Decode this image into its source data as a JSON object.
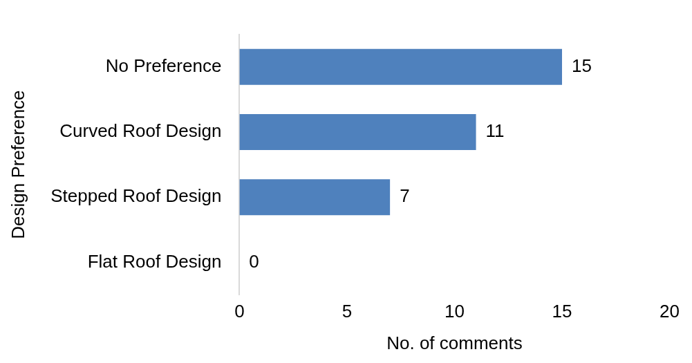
{
  "chart_data": {
    "type": "bar",
    "orientation": "horizontal",
    "categories": [
      "No Preference",
      "Curved Roof Design",
      "Stepped Roof Design",
      "Flat Roof Design"
    ],
    "values": [
      15,
      11,
      7,
      0
    ],
    "color": "#4f81bd",
    "xlim": [
      0,
      20
    ],
    "xticks": [
      0,
      5,
      10,
      15,
      20
    ],
    "xlabel": "No. of comments",
    "ylabel": "Design Preference",
    "data_labels": true,
    "grid": false,
    "legend": false
  }
}
